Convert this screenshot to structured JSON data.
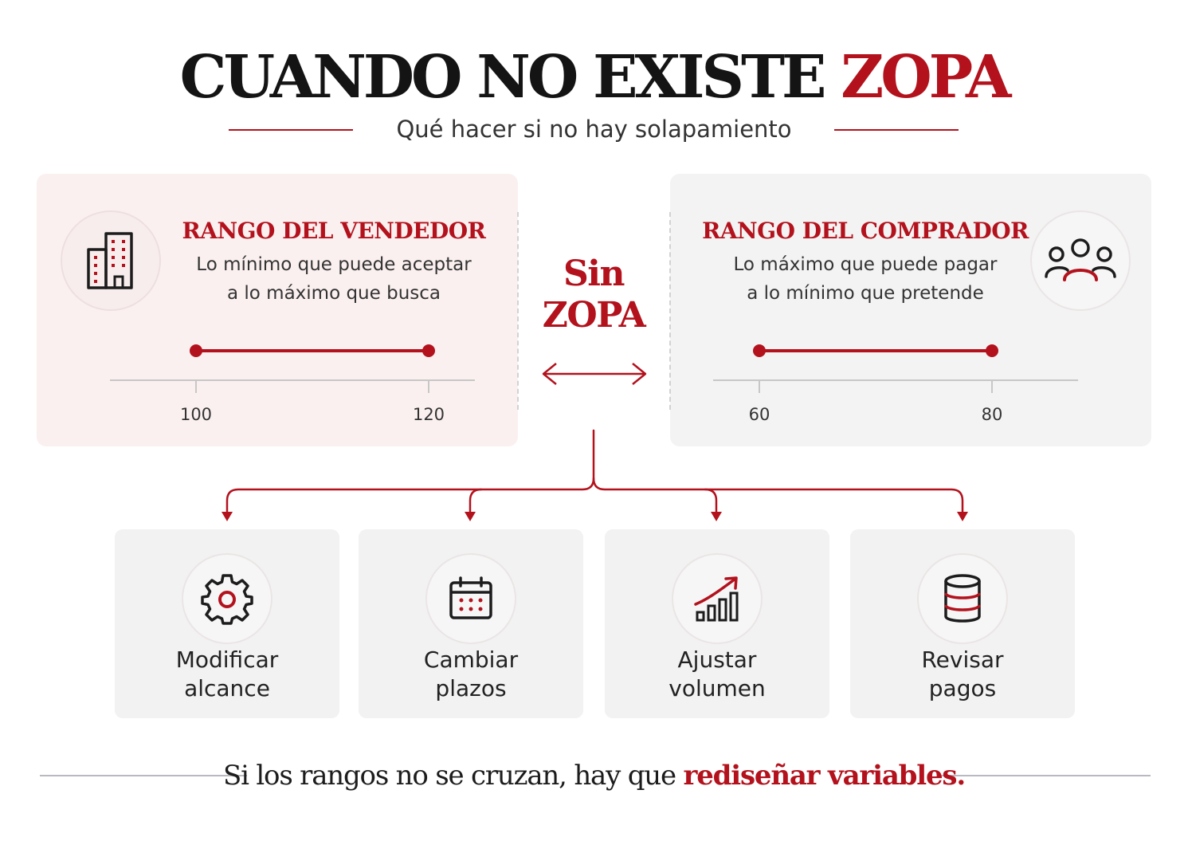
{
  "title": {
    "main": "CUANDO NO EXISTE",
    "highlight": "ZOPA"
  },
  "subtitle": "Qué hacer si no hay solapamiento",
  "colors": {
    "accent": "#b3121d",
    "text": "#1c1c1c",
    "seller_panel": "#fbf0f0",
    "buyer_panel": "#f3f3f3"
  },
  "seller": {
    "icon": "building-icon",
    "title": "RANGO DEL VENDEDOR",
    "desc_line1": "Lo mínimo que puede aceptar",
    "desc_line2": "a lo máximo que busca",
    "range": {
      "min": 100,
      "max": 120
    },
    "min_label": "100",
    "max_label": "120"
  },
  "buyer": {
    "icon": "people-group-icon",
    "title": "RANGO DEL COMPRADOR",
    "desc_line1": "Lo máximo que puede pagar",
    "desc_line2": "a lo mínimo que pretende",
    "range": {
      "min": 60,
      "max": 80
    },
    "min_label": "60",
    "max_label": "80"
  },
  "center": {
    "line1": "Sin",
    "line2": "ZOPA",
    "icon": "double-arrow-icon"
  },
  "options": [
    {
      "icon": "gear-icon",
      "label": "Modificar\nalcance"
    },
    {
      "icon": "calendar-icon",
      "label": "Cambiar\nplazos"
    },
    {
      "icon": "growth-chart-icon",
      "label": "Ajustar\nvolumen"
    },
    {
      "icon": "database-icon",
      "label": "Revisar\npagos"
    }
  ],
  "footer": {
    "text": "Si los rangos no se cruzan, hay que",
    "highlight": "rediseñar variables."
  }
}
